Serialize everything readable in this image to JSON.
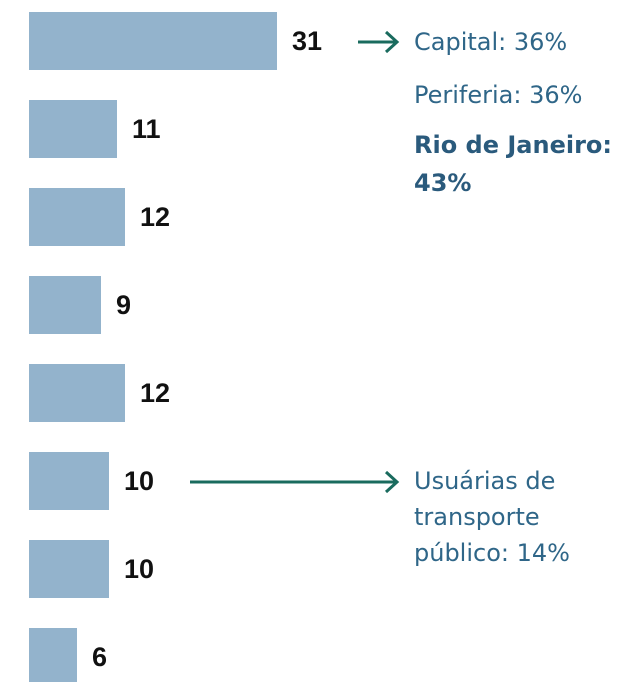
{
  "chart_data": {
    "type": "bar",
    "orientation": "horizontal",
    "values": [
      31,
      11,
      12,
      9,
      12,
      10,
      10,
      6
    ],
    "color": "#93b3cc",
    "annotations": [
      "Capital: 36%",
      "Periferia: 36%",
      "Rio de Janeiro: 43%",
      "Usuárias de transporte público: 14%"
    ]
  }
}
